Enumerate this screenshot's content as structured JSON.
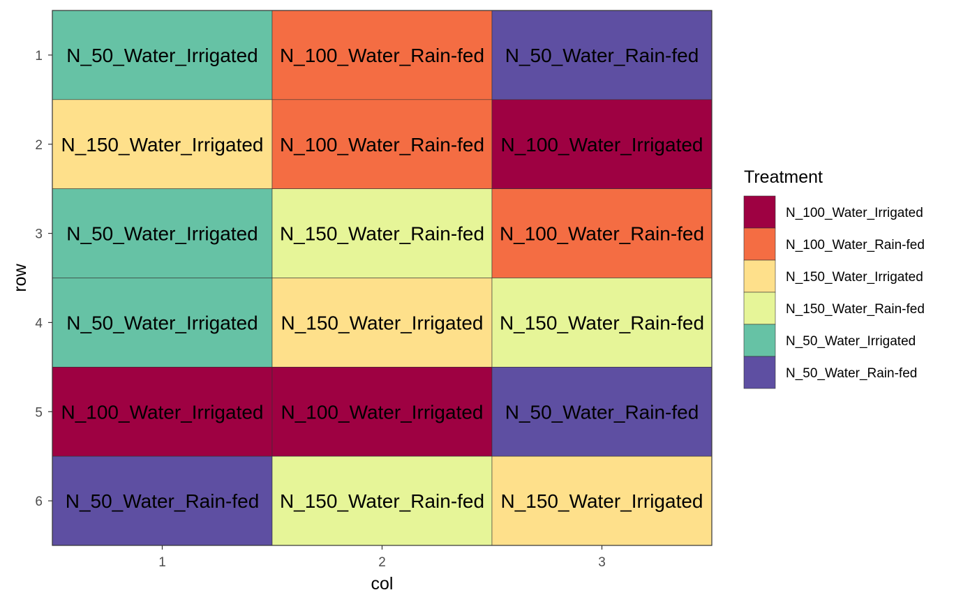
{
  "chart_data": {
    "type": "heatmap",
    "xlabel": "col",
    "ylabel": "row",
    "x_categories": [
      "1",
      "2",
      "3"
    ],
    "y_categories": [
      "1",
      "2",
      "3",
      "4",
      "5",
      "6"
    ],
    "y_order": "top-to-bottom",
    "cells": [
      {
        "row": 1,
        "col": 1,
        "treatment": "N_50_Water_Irrigated"
      },
      {
        "row": 1,
        "col": 2,
        "treatment": "N_100_Water_Rain-fed"
      },
      {
        "row": 1,
        "col": 3,
        "treatment": "N_50_Water_Rain-fed"
      },
      {
        "row": 2,
        "col": 1,
        "treatment": "N_150_Water_Irrigated"
      },
      {
        "row": 2,
        "col": 2,
        "treatment": "N_100_Water_Rain-fed"
      },
      {
        "row": 2,
        "col": 3,
        "treatment": "N_100_Water_Irrigated"
      },
      {
        "row": 3,
        "col": 1,
        "treatment": "N_50_Water_Irrigated"
      },
      {
        "row": 3,
        "col": 2,
        "treatment": "N_150_Water_Rain-fed"
      },
      {
        "row": 3,
        "col": 3,
        "treatment": "N_100_Water_Rain-fed"
      },
      {
        "row": 4,
        "col": 1,
        "treatment": "N_50_Water_Irrigated"
      },
      {
        "row": 4,
        "col": 2,
        "treatment": "N_150_Water_Irrigated"
      },
      {
        "row": 4,
        "col": 3,
        "treatment": "N_150_Water_Rain-fed"
      },
      {
        "row": 5,
        "col": 1,
        "treatment": "N_100_Water_Irrigated"
      },
      {
        "row": 5,
        "col": 2,
        "treatment": "N_100_Water_Irrigated"
      },
      {
        "row": 5,
        "col": 3,
        "treatment": "N_50_Water_Rain-fed"
      },
      {
        "row": 6,
        "col": 1,
        "treatment": "N_50_Water_Rain-fed"
      },
      {
        "row": 6,
        "col": 2,
        "treatment": "N_150_Water_Rain-fed"
      },
      {
        "row": 6,
        "col": 3,
        "treatment": "N_150_Water_Irrigated"
      }
    ],
    "legend": {
      "title": "Treatment",
      "position": "right",
      "entries": [
        {
          "label": "N_100_Water_Irrigated",
          "color": "#9E0142"
        },
        {
          "label": "N_100_Water_Rain-fed",
          "color": "#F46D43"
        },
        {
          "label": "N_150_Water_Irrigated",
          "color": "#FEE08B"
        },
        {
          "label": "N_150_Water_Rain-fed",
          "color": "#E6F598"
        },
        {
          "label": "N_50_Water_Irrigated",
          "color": "#66C2A5"
        },
        {
          "label": "N_50_Water_Rain-fed",
          "color": "#5E4FA2"
        }
      ]
    },
    "grid": false
  }
}
